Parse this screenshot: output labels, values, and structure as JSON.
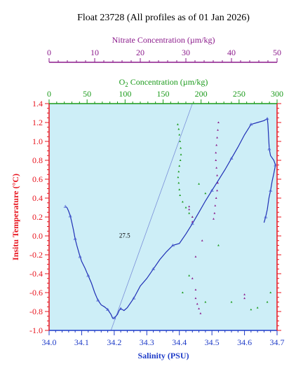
{
  "chart_data": {
    "type": "scatter",
    "title": "Float 23728  (All profiles as of 01 Jan 2026)",
    "xlabel": "Salinity (PSU)",
    "ylabel": "Insitu Temperature (°C)",
    "xlim": [
      34.0,
      34.7
    ],
    "ylim": [
      -1.0,
      1.4
    ],
    "x_ticks": [
      "34.0",
      "34.1",
      "34.2",
      "34.3",
      "34.4",
      "34.5",
      "34.6",
      "34.7"
    ],
    "y_ticks": [
      "-1.0",
      "-0.8",
      "-0.6",
      "-0.4",
      "-0.2",
      "0.0",
      "0.2",
      "0.4",
      "0.6",
      "0.8",
      "1.0",
      "1.2",
      "1.4"
    ],
    "nitrate_axis": {
      "label": "Nitrate Concentration (µm/kg)",
      "range": [
        0,
        50
      ],
      "ticks": [
        "0",
        "10",
        "20",
        "30",
        "40",
        "50"
      ],
      "color": "#8b1a8b"
    },
    "oxygen_axis": {
      "label_prefix": "O",
      "label_sub": "2",
      "label_suffix": " Concentration (µm/kg)",
      "range": [
        0,
        300
      ],
      "ticks": [
        "0",
        "50",
        "100",
        "150",
        "200",
        "250",
        "300"
      ],
      "color": "#1a9a1a"
    },
    "density_contour": {
      "label": "27.5",
      "points": [
        [
          34.19,
          -1.0
        ],
        [
          34.44,
          1.4
        ]
      ],
      "label_at": [
        34.215,
        -0.02
      ]
    },
    "colors": {
      "background": "#cdeef7",
      "axis_left": "#e8141e",
      "axis_bottom": "#1f3cc8",
      "salinity_line": "#1f2fb5",
      "oxygen_points": "#1a9a1a",
      "nitrate_points": "#8b1a8b",
      "contour": "#7a8fd8"
    },
    "series": [
      {
        "kind": "salinity",
        "points": [
          [
            34.05,
            0.31
          ],
          [
            34.055,
            0.3
          ],
          [
            34.06,
            0.26
          ],
          [
            34.065,
            0.21
          ],
          [
            34.07,
            0.14
          ],
          [
            34.075,
            0.06
          ],
          [
            34.08,
            -0.03
          ],
          [
            34.085,
            -0.1
          ],
          [
            34.09,
            -0.16
          ],
          [
            34.095,
            -0.22
          ],
          [
            34.1,
            -0.27
          ],
          [
            34.11,
            -0.34
          ],
          [
            34.12,
            -0.42
          ],
          [
            34.13,
            -0.5
          ],
          [
            34.14,
            -0.6
          ],
          [
            34.15,
            -0.68
          ],
          [
            34.16,
            -0.73
          ],
          [
            34.17,
            -0.75
          ],
          [
            34.18,
            -0.78
          ],
          [
            34.19,
            -0.83
          ],
          [
            34.195,
            -0.87
          ],
          [
            34.2,
            -0.87
          ],
          [
            34.21,
            -0.83
          ],
          [
            34.215,
            -0.79
          ],
          [
            34.22,
            -0.77
          ],
          [
            34.23,
            -0.79
          ],
          [
            34.24,
            -0.76
          ],
          [
            34.26,
            -0.66
          ],
          [
            34.28,
            -0.53
          ],
          [
            34.3,
            -0.45
          ],
          [
            34.32,
            -0.35
          ],
          [
            34.34,
            -0.25
          ],
          [
            34.36,
            -0.17
          ],
          [
            34.38,
            -0.1
          ],
          [
            34.4,
            -0.08
          ],
          [
            34.42,
            0.02
          ],
          [
            34.44,
            0.13
          ],
          [
            34.46,
            0.25
          ],
          [
            34.48,
            0.37
          ],
          [
            34.5,
            0.48
          ],
          [
            34.52,
            0.59
          ],
          [
            34.54,
            0.7
          ],
          [
            34.56,
            0.82
          ],
          [
            34.58,
            0.94
          ],
          [
            34.6,
            1.07
          ],
          [
            34.62,
            1.18
          ],
          [
            34.64,
            1.2
          ],
          [
            34.66,
            1.22
          ],
          [
            34.67,
            1.24
          ],
          [
            34.672,
            1.18
          ],
          [
            34.674,
            1.05
          ],
          [
            34.676,
            0.92
          ],
          [
            34.68,
            0.85
          ],
          [
            34.69,
            0.8
          ],
          [
            34.695,
            0.75
          ],
          [
            34.69,
            0.66
          ],
          [
            34.685,
            0.58
          ],
          [
            34.68,
            0.48
          ],
          [
            34.675,
            0.4
          ],
          [
            34.67,
            0.28
          ],
          [
            34.665,
            0.2
          ],
          [
            34.66,
            0.14
          ]
        ]
      },
      {
        "kind": "oxygen",
        "points": [
          [
            34.395,
            1.18
          ],
          [
            34.398,
            1.13
          ],
          [
            34.4,
            1.07
          ],
          [
            34.402,
            1.0
          ],
          [
            34.404,
            0.93
          ],
          [
            34.405,
            0.86
          ],
          [
            34.403,
            0.8
          ],
          [
            34.4,
            0.74
          ],
          [
            34.398,
            0.68
          ],
          [
            34.396,
            0.62
          ],
          [
            34.398,
            0.56
          ],
          [
            34.4,
            0.49
          ],
          [
            34.402,
            0.43
          ],
          [
            34.41,
            0.36
          ],
          [
            34.42,
            0.3
          ],
          [
            34.43,
            0.24
          ],
          [
            34.44,
            0.2
          ],
          [
            34.46,
            0.55
          ],
          [
            34.48,
            0.45
          ],
          [
            34.52,
            -0.1
          ],
          [
            34.43,
            -0.42
          ],
          [
            34.41,
            -0.6
          ],
          [
            34.48,
            -0.7
          ],
          [
            34.56,
            -0.7
          ],
          [
            34.62,
            -0.78
          ],
          [
            34.64,
            -0.76
          ],
          [
            34.67,
            -0.7
          ],
          [
            34.68,
            -0.6
          ]
        ]
      },
      {
        "kind": "nitrate",
        "points": [
          [
            34.52,
            1.2
          ],
          [
            34.518,
            1.12
          ],
          [
            34.516,
            1.04
          ],
          [
            34.514,
            0.96
          ],
          [
            34.512,
            0.88
          ],
          [
            34.512,
            0.8
          ],
          [
            34.514,
            0.72
          ],
          [
            34.516,
            0.64
          ],
          [
            34.518,
            0.56
          ],
          [
            34.516,
            0.48
          ],
          [
            34.513,
            0.4
          ],
          [
            34.51,
            0.32
          ],
          [
            34.508,
            0.24
          ],
          [
            34.505,
            0.18
          ],
          [
            34.43,
            0.31
          ],
          [
            34.43,
            0.28
          ],
          [
            34.44,
            0.2
          ],
          [
            34.44,
            0.15
          ],
          [
            34.47,
            -0.05
          ],
          [
            34.45,
            -0.22
          ],
          [
            34.44,
            -0.45
          ],
          [
            34.45,
            -0.57
          ],
          [
            34.45,
            -0.66
          ],
          [
            34.455,
            -0.72
          ],
          [
            34.46,
            -0.77
          ],
          [
            34.465,
            -0.82
          ],
          [
            34.6,
            -0.62
          ],
          [
            34.6,
            -0.66
          ]
        ]
      }
    ]
  }
}
